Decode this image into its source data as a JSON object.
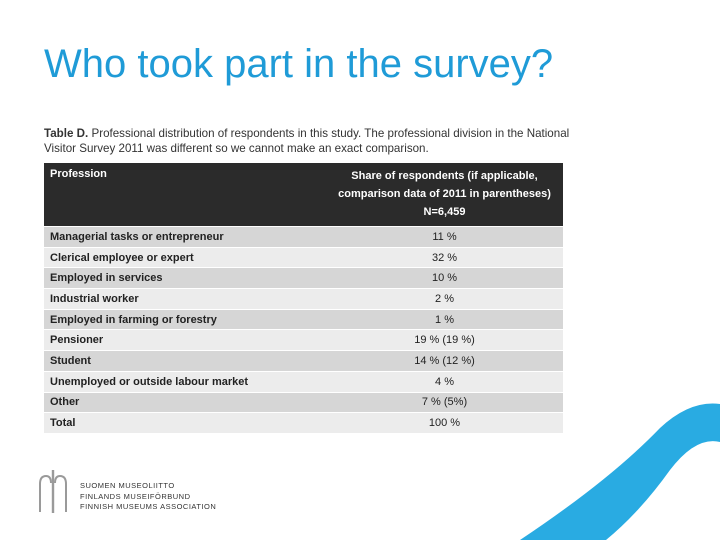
{
  "title": "Who took part in the survey?",
  "caption": {
    "label": "Table D.",
    "text": " Professional distribution of respondents in this study. The professional division in the National Visitor Survey 2011 was different so we cannot make an exact comparison."
  },
  "table": {
    "header": {
      "profession": "Profession",
      "share_line1": "Share of respondents (if applicable,",
      "share_line2": "comparison data of 2011 in parentheses)",
      "share_line3": "N=6,459"
    },
    "rows": [
      {
        "profession": "Managerial tasks or entrepreneur",
        "share": "11 %"
      },
      {
        "profession": "Clerical employee or expert",
        "share": "32 %"
      },
      {
        "profession": "Employed in services",
        "share": "10 %"
      },
      {
        "profession": "Industrial worker",
        "share": "2 %"
      },
      {
        "profession": "Employed in farming or forestry",
        "share": "1 %"
      },
      {
        "profession": "Pensioner",
        "share": "19 % (19 %)"
      },
      {
        "profession": "Student",
        "share": "14 % (12 %)"
      },
      {
        "profession": "Unemployed or outside labour market",
        "share": "4 %"
      },
      {
        "profession": "Other",
        "share": "7 % (5%)"
      },
      {
        "profession": "Total",
        "share": "100 %"
      }
    ]
  },
  "logo": {
    "line1": "SUOMEN MUSEOLIITTO",
    "line2": "FINLANDS MUSEIFÖRBUND",
    "line3": "FINNISH MUSEUMS ASSOCIATION",
    "icon": "museum-association-logo-icon"
  },
  "colors": {
    "title": "#1f9bd7",
    "table_header_bg": "#2b2b2b",
    "row_dark": "#d6d6d6",
    "row_light": "#ececec",
    "swoosh": "#29abe2"
  }
}
